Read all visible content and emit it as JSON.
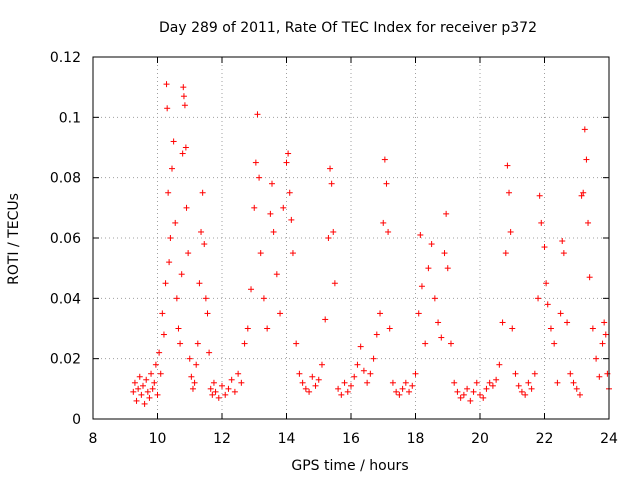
{
  "chart_data": {
    "type": "scatter",
    "title": "Day 289 of 2011, Rate Of TEC Index for receiver p372",
    "xlabel": "GPS time / hours",
    "ylabel": "ROTI / TECUs",
    "xlim": [
      8,
      24
    ],
    "ylim": [
      0,
      0.12
    ],
    "xticks": [
      8,
      10,
      12,
      14,
      16,
      18,
      20,
      22,
      24
    ],
    "yticks": [
      0,
      0.02,
      0.04,
      0.06,
      0.08,
      0.1,
      0.12
    ],
    "xtick_labels": [
      "8",
      "10",
      "12",
      "14",
      "16",
      "18",
      "20",
      "22",
      "24"
    ],
    "ytick_labels": [
      "0",
      "0.02",
      "0.04",
      "0.06",
      "0.08",
      "0.1",
      "0.12"
    ],
    "grid": true,
    "marker": "+",
    "color": "#ff0000",
    "series": [
      {
        "name": "ROTI",
        "points": [
          [
            9.25,
            0.009
          ],
          [
            9.3,
            0.012
          ],
          [
            9.35,
            0.006
          ],
          [
            9.4,
            0.01
          ],
          [
            9.45,
            0.014
          ],
          [
            9.5,
            0.008
          ],
          [
            9.55,
            0.011
          ],
          [
            9.6,
            0.005
          ],
          [
            9.65,
            0.013
          ],
          [
            9.7,
            0.009
          ],
          [
            9.75,
            0.007
          ],
          [
            9.8,
            0.015
          ],
          [
            9.85,
            0.01
          ],
          [
            9.9,
            0.012
          ],
          [
            9.95,
            0.018
          ],
          [
            10.0,
            0.008
          ],
          [
            10.05,
            0.022
          ],
          [
            10.1,
            0.015
          ],
          [
            10.15,
            0.035
          ],
          [
            10.2,
            0.028
          ],
          [
            10.25,
            0.045
          ],
          [
            10.28,
            0.111
          ],
          [
            10.3,
            0.103
          ],
          [
            10.33,
            0.075
          ],
          [
            10.36,
            0.052
          ],
          [
            10.4,
            0.06
          ],
          [
            10.45,
            0.083
          ],
          [
            10.5,
            0.092
          ],
          [
            10.55,
            0.065
          ],
          [
            10.6,
            0.04
          ],
          [
            10.65,
            0.03
          ],
          [
            10.7,
            0.025
          ],
          [
            10.75,
            0.048
          ],
          [
            10.78,
            0.088
          ],
          [
            10.8,
            0.11
          ],
          [
            10.82,
            0.107
          ],
          [
            10.85,
            0.104
          ],
          [
            10.88,
            0.09
          ],
          [
            10.9,
            0.07
          ],
          [
            10.95,
            0.055
          ],
          [
            11.0,
            0.02
          ],
          [
            11.05,
            0.014
          ],
          [
            11.1,
            0.01
          ],
          [
            11.15,
            0.012
          ],
          [
            11.2,
            0.018
          ],
          [
            11.25,
            0.025
          ],
          [
            11.3,
            0.045
          ],
          [
            11.35,
            0.062
          ],
          [
            11.4,
            0.075
          ],
          [
            11.45,
            0.058
          ],
          [
            11.5,
            0.04
          ],
          [
            11.55,
            0.035
          ],
          [
            11.6,
            0.022
          ],
          [
            11.65,
            0.01
          ],
          [
            11.7,
            0.008
          ],
          [
            11.75,
            0.012
          ],
          [
            11.8,
            0.009
          ],
          [
            11.9,
            0.007
          ],
          [
            12.0,
            0.011
          ],
          [
            12.1,
            0.008
          ],
          [
            12.2,
            0.01
          ],
          [
            12.3,
            0.013
          ],
          [
            12.4,
            0.009
          ],
          [
            12.5,
            0.015
          ],
          [
            12.6,
            0.012
          ],
          [
            12.7,
            0.025
          ],
          [
            12.8,
            0.03
          ],
          [
            12.9,
            0.043
          ],
          [
            13.0,
            0.07
          ],
          [
            13.05,
            0.085
          ],
          [
            13.1,
            0.101
          ],
          [
            13.15,
            0.08
          ],
          [
            13.2,
            0.055
          ],
          [
            13.3,
            0.04
          ],
          [
            13.4,
            0.03
          ],
          [
            13.5,
            0.068
          ],
          [
            13.55,
            0.078
          ],
          [
            13.6,
            0.062
          ],
          [
            13.7,
            0.048
          ],
          [
            13.8,
            0.035
          ],
          [
            13.9,
            0.07
          ],
          [
            14.0,
            0.085
          ],
          [
            14.05,
            0.088
          ],
          [
            14.1,
            0.075
          ],
          [
            14.15,
            0.066
          ],
          [
            14.2,
            0.055
          ],
          [
            14.3,
            0.025
          ],
          [
            14.4,
            0.015
          ],
          [
            14.5,
            0.012
          ],
          [
            14.6,
            0.01
          ],
          [
            14.7,
            0.009
          ],
          [
            14.8,
            0.014
          ],
          [
            14.9,
            0.011
          ],
          [
            15.0,
            0.013
          ],
          [
            15.1,
            0.018
          ],
          [
            15.2,
            0.033
          ],
          [
            15.3,
            0.06
          ],
          [
            15.35,
            0.083
          ],
          [
            15.4,
            0.078
          ],
          [
            15.45,
            0.062
          ],
          [
            15.5,
            0.045
          ],
          [
            15.6,
            0.01
          ],
          [
            15.7,
            0.008
          ],
          [
            15.8,
            0.012
          ],
          [
            15.9,
            0.009
          ],
          [
            16.0,
            0.011
          ],
          [
            16.1,
            0.014
          ],
          [
            16.2,
            0.018
          ],
          [
            16.3,
            0.024
          ],
          [
            16.4,
            0.016
          ],
          [
            16.5,
            0.012
          ],
          [
            16.6,
            0.015
          ],
          [
            16.7,
            0.02
          ],
          [
            16.8,
            0.028
          ],
          [
            16.9,
            0.035
          ],
          [
            17.0,
            0.065
          ],
          [
            17.05,
            0.086
          ],
          [
            17.1,
            0.078
          ],
          [
            17.15,
            0.062
          ],
          [
            17.2,
            0.03
          ],
          [
            17.3,
            0.012
          ],
          [
            17.4,
            0.009
          ],
          [
            17.5,
            0.008
          ],
          [
            17.6,
            0.01
          ],
          [
            17.7,
            0.012
          ],
          [
            17.8,
            0.009
          ],
          [
            17.9,
            0.011
          ],
          [
            18.0,
            0.015
          ],
          [
            18.1,
            0.035
          ],
          [
            18.15,
            0.061
          ],
          [
            18.2,
            0.044
          ],
          [
            18.3,
            0.025
          ],
          [
            18.4,
            0.05
          ],
          [
            18.5,
            0.058
          ],
          [
            18.6,
            0.04
          ],
          [
            18.7,
            0.032
          ],
          [
            18.8,
            0.027
          ],
          [
            18.9,
            0.055
          ],
          [
            18.95,
            0.068
          ],
          [
            19.0,
            0.05
          ],
          [
            19.1,
            0.025
          ],
          [
            19.2,
            0.012
          ],
          [
            19.3,
            0.009
          ],
          [
            19.4,
            0.007
          ],
          [
            19.5,
            0.008
          ],
          [
            19.6,
            0.01
          ],
          [
            19.7,
            0.006
          ],
          [
            19.8,
            0.009
          ],
          [
            19.9,
            0.012
          ],
          [
            20.0,
            0.008
          ],
          [
            20.1,
            0.007
          ],
          [
            20.2,
            0.01
          ],
          [
            20.3,
            0.012
          ],
          [
            20.4,
            0.011
          ],
          [
            20.5,
            0.013
          ],
          [
            20.6,
            0.018
          ],
          [
            20.7,
            0.032
          ],
          [
            20.8,
            0.055
          ],
          [
            20.85,
            0.084
          ],
          [
            20.9,
            0.075
          ],
          [
            20.95,
            0.062
          ],
          [
            21.0,
            0.03
          ],
          [
            21.1,
            0.015
          ],
          [
            21.2,
            0.011
          ],
          [
            21.3,
            0.009
          ],
          [
            21.4,
            0.008
          ],
          [
            21.5,
            0.012
          ],
          [
            21.6,
            0.01
          ],
          [
            21.7,
            0.015
          ],
          [
            21.8,
            0.04
          ],
          [
            21.85,
            0.074
          ],
          [
            21.9,
            0.065
          ],
          [
            22.0,
            0.057
          ],
          [
            22.05,
            0.045
          ],
          [
            22.1,
            0.038
          ],
          [
            22.2,
            0.03
          ],
          [
            22.3,
            0.025
          ],
          [
            22.4,
            0.012
          ],
          [
            22.5,
            0.035
          ],
          [
            22.55,
            0.059
          ],
          [
            22.6,
            0.055
          ],
          [
            22.7,
            0.032
          ],
          [
            22.8,
            0.015
          ],
          [
            22.9,
            0.012
          ],
          [
            23.0,
            0.01
          ],
          [
            23.1,
            0.008
          ],
          [
            23.15,
            0.074
          ],
          [
            23.2,
            0.075
          ],
          [
            23.25,
            0.096
          ],
          [
            23.3,
            0.086
          ],
          [
            23.35,
            0.065
          ],
          [
            23.4,
            0.047
          ],
          [
            23.5,
            0.03
          ],
          [
            23.6,
            0.02
          ],
          [
            23.7,
            0.014
          ],
          [
            23.8,
            0.025
          ],
          [
            23.85,
            0.032
          ],
          [
            23.9,
            0.028
          ],
          [
            23.95,
            0.015
          ],
          [
            24.0,
            0.01
          ]
        ]
      }
    ]
  }
}
